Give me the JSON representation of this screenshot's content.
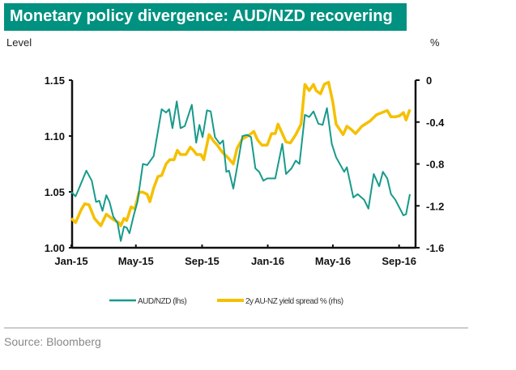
{
  "header": {
    "title": "Monetary policy divergence: AUD/NZD recovering"
  },
  "footer": {
    "source": "Source: Bloomberg"
  },
  "colors": {
    "header_bg": "#009180",
    "audnzd": "#179a8b",
    "spread": "#f5c000"
  },
  "chart_data": {
    "type": "line",
    "title": "Monetary policy divergence: AUD/NZD recovering",
    "ylabel_left": "Level",
    "ylabel_right": "%",
    "x_ticks": [
      "Jan-15",
      "May-15",
      "Sep-15",
      "Jan-16",
      "May-16",
      "Sep-16"
    ],
    "x_tick_dates": [
      "2015-01-01",
      "2015-05-01",
      "2015-09-01",
      "2016-01-01",
      "2016-05-01",
      "2016-09-01"
    ],
    "y_left": {
      "range": [
        1.0,
        1.15
      ],
      "ticks": [
        "1.00",
        "1.05",
        "1.10",
        "1.15"
      ]
    },
    "y_right": {
      "range": [
        -1.6,
        0
      ],
      "ticks": [
        "-1.6",
        "-1.2",
        "-0.8",
        "-0.4",
        "0"
      ]
    },
    "grid": false,
    "legend_position": "bottom",
    "series": [
      {
        "name": "AUD/NZD (lhs)",
        "axis": "left",
        "color": "#179a8b",
        "points": [
          [
            "2015-01-01",
            1.05
          ],
          [
            "2015-01-09",
            1.046
          ],
          [
            "2015-01-16",
            1.054
          ],
          [
            "2015-01-29",
            1.069
          ],
          [
            "2015-02-08",
            1.06
          ],
          [
            "2015-02-16",
            1.041
          ],
          [
            "2015-02-22",
            1.042
          ],
          [
            "2015-02-28",
            1.033
          ],
          [
            "2015-03-07",
            1.047
          ],
          [
            "2015-03-13",
            1.041
          ],
          [
            "2015-03-20",
            1.028
          ],
          [
            "2015-03-28",
            1.022
          ],
          [
            "2015-04-03",
            1.006
          ],
          [
            "2015-04-09",
            1.019
          ],
          [
            "2015-04-14",
            1.018
          ],
          [
            "2015-04-19",
            1.013
          ],
          [
            "2015-04-27",
            1.029
          ],
          [
            "2015-05-04",
            1.041
          ],
          [
            "2015-05-14",
            1.075
          ],
          [
            "2015-05-22",
            1.074
          ],
          [
            "2015-06-03",
            1.082
          ],
          [
            "2015-06-18",
            1.124
          ],
          [
            "2015-06-26",
            1.121
          ],
          [
            "2015-07-02",
            1.124
          ],
          [
            "2015-07-08",
            1.107
          ],
          [
            "2015-07-16",
            1.131
          ],
          [
            "2015-07-23",
            1.107
          ],
          [
            "2015-07-31",
            1.109
          ],
          [
            "2015-08-13",
            1.128
          ],
          [
            "2015-08-21",
            1.094
          ],
          [
            "2015-08-27",
            1.11
          ],
          [
            "2015-09-02",
            1.099
          ],
          [
            "2015-09-10",
            1.123
          ],
          [
            "2015-09-17",
            1.122
          ],
          [
            "2015-09-25",
            1.099
          ],
          [
            "2015-10-04",
            1.093
          ],
          [
            "2015-10-10",
            1.096
          ],
          [
            "2015-10-16",
            1.068
          ],
          [
            "2015-10-21",
            1.069
          ],
          [
            "2015-10-29",
            1.053
          ],
          [
            "2015-11-05",
            1.072
          ],
          [
            "2015-11-15",
            1.1
          ],
          [
            "2015-11-24",
            1.101
          ],
          [
            "2015-12-01",
            1.099
          ],
          [
            "2015-12-09",
            1.071
          ],
          [
            "2015-12-16",
            1.068
          ],
          [
            "2015-12-24",
            1.06
          ],
          [
            "2015-12-31",
            1.062
          ],
          [
            "2016-01-08",
            1.062
          ],
          [
            "2016-01-15",
            1.062
          ],
          [
            "2016-01-28",
            1.093
          ],
          [
            "2016-02-04",
            1.066
          ],
          [
            "2016-02-14",
            1.071
          ],
          [
            "2016-02-22",
            1.078
          ],
          [
            "2016-02-29",
            1.075
          ],
          [
            "2016-03-10",
            1.119
          ],
          [
            "2016-03-18",
            1.117
          ],
          [
            "2016-03-26",
            1.122
          ],
          [
            "2016-04-04",
            1.111
          ],
          [
            "2016-04-12",
            1.11
          ],
          [
            "2016-04-20",
            1.125
          ],
          [
            "2016-04-29",
            1.093
          ],
          [
            "2016-05-07",
            1.081
          ],
          [
            "2016-05-22",
            1.068
          ],
          [
            "2016-05-27",
            1.072
          ],
          [
            "2016-06-08",
            1.045
          ],
          [
            "2016-06-16",
            1.048
          ],
          [
            "2016-06-28",
            1.043
          ],
          [
            "2016-07-06",
            1.035
          ],
          [
            "2016-07-16",
            1.066
          ],
          [
            "2016-07-26",
            1.055
          ],
          [
            "2016-08-02",
            1.068
          ],
          [
            "2016-08-10",
            1.062
          ],
          [
            "2016-08-17",
            1.048
          ],
          [
            "2016-08-25",
            1.043
          ],
          [
            "2016-09-09",
            1.029
          ],
          [
            "2016-09-14",
            1.03
          ],
          [
            "2016-09-21",
            1.048
          ]
        ]
      },
      {
        "name": "2y AU-NZ yield spread % (rhs)",
        "axis": "right",
        "color": "#f5c000",
        "points": [
          [
            "2015-01-01",
            -1.32
          ],
          [
            "2015-01-09",
            -1.36
          ],
          [
            "2015-01-19",
            -1.24
          ],
          [
            "2015-01-26",
            -1.18
          ],
          [
            "2015-02-03",
            -1.19
          ],
          [
            "2015-02-13",
            -1.32
          ],
          [
            "2015-02-25",
            -1.39
          ],
          [
            "2015-03-07",
            -1.28
          ],
          [
            "2015-03-20",
            -1.33
          ],
          [
            "2015-03-30",
            -1.36
          ],
          [
            "2015-04-03",
            -1.39
          ],
          [
            "2015-04-09",
            -1.32
          ],
          [
            "2015-04-14",
            -1.34
          ],
          [
            "2015-04-22",
            -1.21
          ],
          [
            "2015-04-29",
            -1.23
          ],
          [
            "2015-05-07",
            -1.07
          ],
          [
            "2015-05-14",
            -1.07
          ],
          [
            "2015-05-22",
            -1.09
          ],
          [
            "2015-05-27",
            -1.16
          ],
          [
            "2015-06-03",
            -1.03
          ],
          [
            "2015-06-11",
            -0.92
          ],
          [
            "2015-06-18",
            -0.91
          ],
          [
            "2015-06-26",
            -0.8
          ],
          [
            "2015-07-03",
            -0.76
          ],
          [
            "2015-07-11",
            -0.76
          ],
          [
            "2015-07-17",
            -0.67
          ],
          [
            "2015-07-23",
            -0.71
          ],
          [
            "2015-08-02",
            -0.71
          ],
          [
            "2015-08-10",
            -0.64
          ],
          [
            "2015-08-16",
            -0.67
          ],
          [
            "2015-08-22",
            -0.71
          ],
          [
            "2015-08-30",
            -0.71
          ],
          [
            "2015-09-04",
            -0.76
          ],
          [
            "2015-09-14",
            -0.52
          ],
          [
            "2015-09-22",
            -0.58
          ],
          [
            "2015-09-29",
            -0.62
          ],
          [
            "2015-10-09",
            -0.69
          ],
          [
            "2015-10-19",
            -0.74
          ],
          [
            "2015-10-29",
            -0.8
          ],
          [
            "2015-11-05",
            -0.65
          ],
          [
            "2015-11-15",
            -0.56
          ],
          [
            "2015-11-26",
            -0.53
          ],
          [
            "2015-12-06",
            -0.49
          ],
          [
            "2015-12-13",
            -0.57
          ],
          [
            "2015-12-21",
            -0.62
          ],
          [
            "2015-12-31",
            -0.62
          ],
          [
            "2016-01-08",
            -0.51
          ],
          [
            "2016-01-15",
            -0.51
          ],
          [
            "2016-01-20",
            -0.42
          ],
          [
            "2016-01-28",
            -0.51
          ],
          [
            "2016-02-04",
            -0.59
          ],
          [
            "2016-02-12",
            -0.6
          ],
          [
            "2016-02-22",
            -0.52
          ],
          [
            "2016-03-03",
            -0.42
          ],
          [
            "2016-03-10",
            -0.04
          ],
          [
            "2016-03-18",
            -0.1
          ],
          [
            "2016-03-26",
            -0.04
          ],
          [
            "2016-03-31",
            -0.1
          ],
          [
            "2016-04-08",
            -0.13
          ],
          [
            "2016-04-15",
            -0.04
          ],
          [
            "2016-04-23",
            -0.02
          ],
          [
            "2016-05-01",
            -0.21
          ],
          [
            "2016-05-07",
            -0.42
          ],
          [
            "2016-05-20",
            -0.52
          ],
          [
            "2016-05-27",
            -0.44
          ],
          [
            "2016-06-04",
            -0.47
          ],
          [
            "2016-06-12",
            -0.51
          ],
          [
            "2016-06-24",
            -0.44
          ],
          [
            "2016-07-09",
            -0.39
          ],
          [
            "2016-07-21",
            -0.33
          ],
          [
            "2016-07-31",
            -0.31
          ],
          [
            "2016-08-10",
            -0.29
          ],
          [
            "2016-08-17",
            -0.35
          ],
          [
            "2016-08-25",
            -0.35
          ],
          [
            "2016-09-02",
            -0.34
          ],
          [
            "2016-09-09",
            -0.31
          ],
          [
            "2016-09-14",
            -0.38
          ],
          [
            "2016-09-21",
            -0.28
          ]
        ]
      }
    ]
  }
}
